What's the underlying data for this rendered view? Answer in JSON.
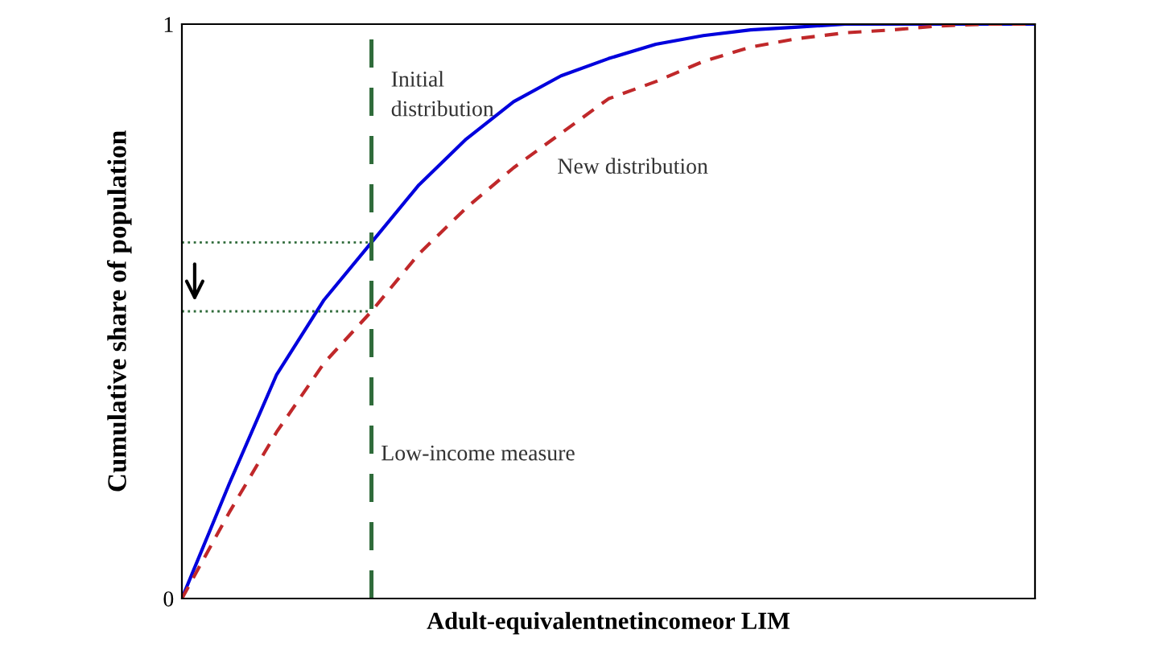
{
  "chart_data": {
    "type": "line",
    "xlabel": "Adult-equivalentnetincomeor LIM",
    "ylabel": "Cumulative share of population",
    "categories": [
      null,
      null,
      null,
      null,
      null,
      null,
      null,
      null,
      null,
      null,
      null,
      null,
      null,
      null,
      null,
      null,
      null,
      null,
      null
    ],
    "ylim": [
      0,
      1
    ],
    "yticks": [
      0,
      1
    ],
    "tick_labels": "y",
    "series": [
      {
        "color": "#0000dd",
        "line_style": "solid",
        "values": [
          0,
          0.2,
          0.39,
          0.52,
          0.62,
          0.72,
          0.8,
          0.865,
          0.91,
          0.94,
          0.965,
          0.98,
          0.99,
          0.995,
          1,
          1,
          1,
          1,
          1
        ]
      },
      {
        "color": "#c0282a",
        "line_style": "dashed",
        "values": [
          0,
          0.15,
          0.29,
          0.41,
          0.5,
          0.6,
          0.68,
          0.75,
          0.81,
          0.87,
          0.9,
          0.935,
          0.96,
          0.975,
          0.985,
          0.99,
          0.997,
          1,
          1
        ]
      },
      {
        "color": "#2f6b3a",
        "line_style": "dotted",
        "values": [
          0.62,
          0.62,
          0.62,
          0.62,
          0.62,
          null,
          null,
          null,
          null,
          null,
          null,
          null,
          null,
          null,
          null,
          null,
          null,
          null,
          null
        ]
      },
      {
        "color": "#2f6b3a",
        "line_style": "dotted",
        "values": [
          0.5,
          0.5,
          0.5,
          0.5,
          0.5,
          null,
          null,
          null,
          null,
          null,
          null,
          null,
          null,
          null,
          null,
          null,
          null,
          null,
          null
        ]
      }
    ],
    "annotations": [
      "Initial\ndistribution",
      "New distribution",
      "Low-income measure"
    ]
  }
}
